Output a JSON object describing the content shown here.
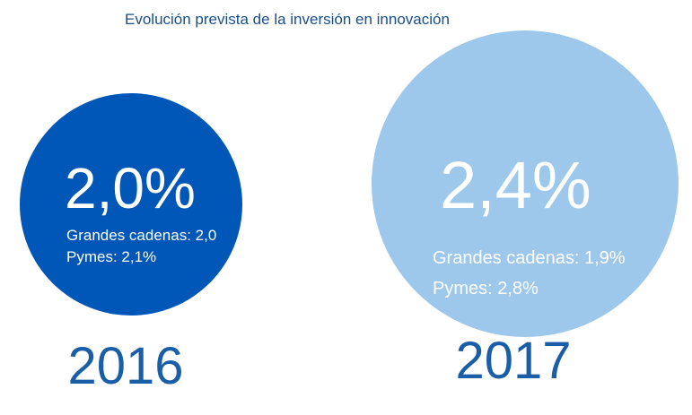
{
  "chart_data": {
    "type": "bubble",
    "title": "Evolución prevista de la inversión en innovación",
    "unit": "%",
    "bubbles": [
      {
        "year": "2016",
        "value": 2.0,
        "value_label": "2,0%",
        "details": [
          "Grandes cadenas: 2,0",
          "Pymes: 2,1%"
        ],
        "color": "#0057b7",
        "text_color": "#ffffff"
      },
      {
        "year": "2017",
        "value": 2.4,
        "value_label": "2,4%",
        "details": [
          "Grandes cadenas: 1,9%",
          "Pymes: 2,8%"
        ],
        "color": "#9dc8ec",
        "text_color": "#ffffff"
      }
    ],
    "colors": {
      "title": "#1a4f8c",
      "year_label": "#1a5ea8"
    }
  }
}
